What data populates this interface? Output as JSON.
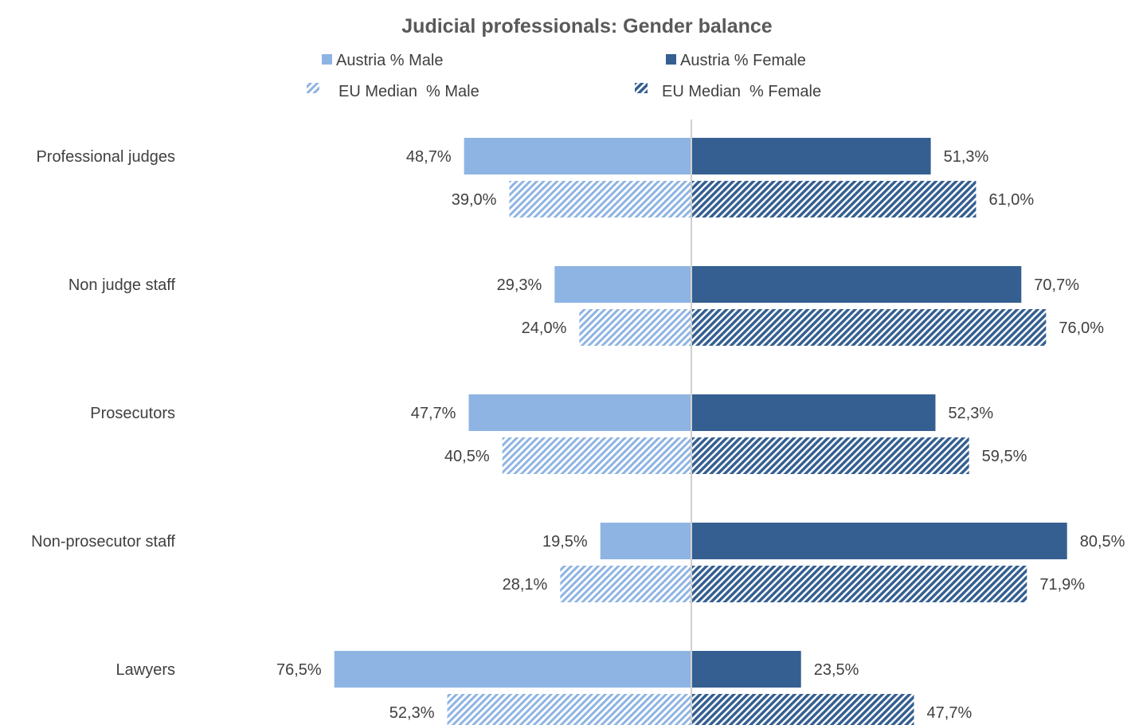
{
  "chart_data": {
    "type": "bar",
    "orientation": "horizontal-diverging",
    "title": "Judicial professionals: Gender balance",
    "categories": [
      "Professional judges",
      "Non judge staff",
      "Prosecutors",
      "Non-prosecutor staff",
      "Lawyers"
    ],
    "series": [
      {
        "name": "Austria % Male",
        "side": "left",
        "fill": "solid",
        "color": "#8eb4e3",
        "values": [
          48.7,
          29.3,
          47.7,
          19.5,
          76.5
        ],
        "labels": [
          "48,7%",
          "29,3%",
          "47,7%",
          "19,5%",
          "76,5%"
        ]
      },
      {
        "name": "Austria % Female",
        "side": "right",
        "fill": "solid",
        "color": "#355f91",
        "values": [
          51.3,
          70.7,
          52.3,
          80.5,
          23.5
        ],
        "labels": [
          "51,3%",
          "70,7%",
          "52,3%",
          "80,5%",
          "23,5%"
        ]
      },
      {
        "name": "EU Median  % Male",
        "side": "left",
        "fill": "hatched",
        "color": "#8eb4e3",
        "values": [
          39.0,
          24.0,
          40.5,
          28.1,
          52.3
        ],
        "labels": [
          "39,0%",
          "24,0%",
          "40,5%",
          "28,1%",
          "52,3%"
        ]
      },
      {
        "name": "EU Median  % Female",
        "side": "right",
        "fill": "hatched",
        "color": "#355f91",
        "values": [
          61.0,
          76.0,
          59.5,
          71.9,
          47.7
        ],
        "labels": [
          "61,0%",
          "76,0%",
          "59,5%",
          "71,9%",
          "47,7%"
        ]
      }
    ],
    "legend_position": "top",
    "grid": false
  }
}
